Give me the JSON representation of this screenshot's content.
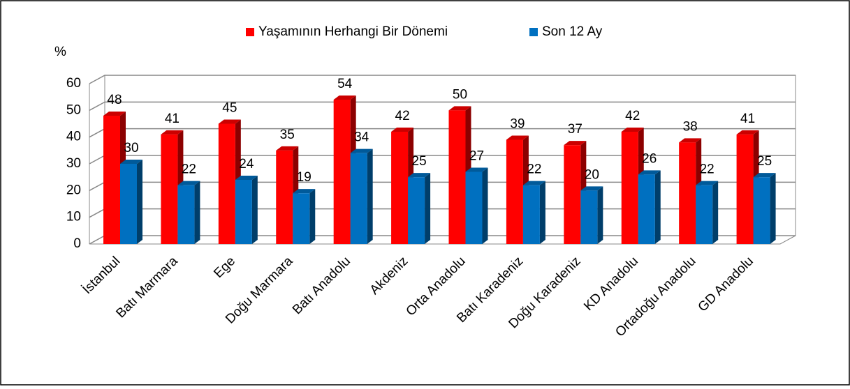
{
  "chart_data": {
    "type": "bar3d",
    "y_axis_label": "%",
    "categories": [
      "İstanbul",
      "Batı Marmara",
      "Ege",
      "Doğu Marmara",
      "Batı Anadolu",
      "Akdeniz",
      "Orta Anadolu",
      "Batı Karadeniz",
      "Doğu Karadeniz",
      "KD Anadolu",
      "Ortadoğu Anadolu",
      "GD Anadolu"
    ],
    "series": [
      {
        "name": "Yaşamının Herhangi Bir Dönemi",
        "color": "#ff0000",
        "values": [
          48,
          41,
          45,
          35,
          54,
          42,
          50,
          39,
          37,
          42,
          38,
          41
        ]
      },
      {
        "name": "Son 12 Ay",
        "color": "#0070c0",
        "values": [
          30,
          22,
          24,
          19,
          34,
          25,
          27,
          22,
          20,
          26,
          22,
          25
        ]
      }
    ],
    "ylim": [
      0,
      60
    ],
    "yticks": [
      0,
      10,
      20,
      30,
      40,
      50,
      60
    ],
    "grid": true,
    "legend": "top"
  }
}
